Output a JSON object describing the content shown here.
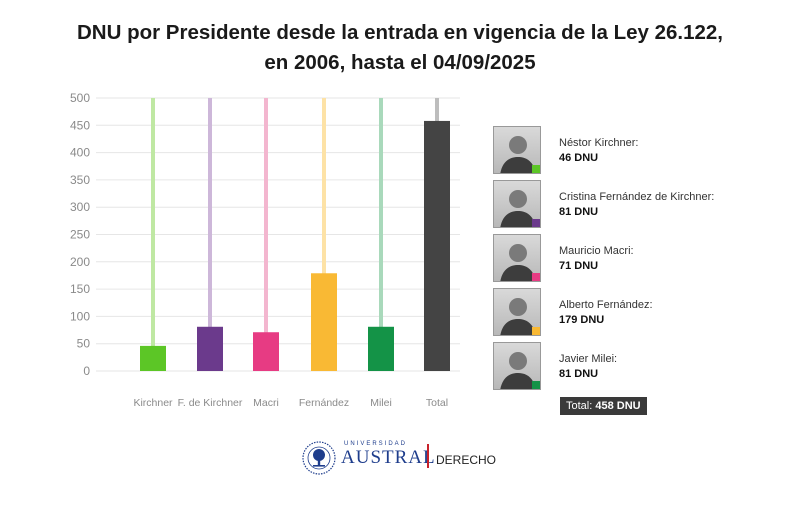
{
  "chart_data": {
    "type": "bar",
    "title_line1": "DNU por Presidente desde la entrada en vigencia de la Ley 26.122,",
    "title_line2": "en 2006, hasta el 04/09/2025",
    "categories": [
      "Kirchner",
      "F. de Kirchner",
      "Macri",
      "Fernández",
      "Milei",
      "Total"
    ],
    "values": [
      46,
      81,
      71,
      179,
      81,
      458
    ],
    "colors": [
      "#5cc626",
      "#6b3a8c",
      "#e73b83",
      "#f9b934",
      "#149347",
      "#444444"
    ],
    "stem_colors": [
      "#bfe8a3",
      "#cdb7d9",
      "#f3b6cf",
      "#fde2a6",
      "#a9d9bb",
      "#bdbdbd"
    ],
    "ylim": [
      0,
      500
    ],
    "yticks": [
      0,
      50,
      100,
      150,
      200,
      250,
      300,
      350,
      400,
      450,
      500
    ],
    "grid": true
  },
  "legend": [
    {
      "name": "Néstor Kirchner:",
      "value": "46 DNU",
      "color": "#5cc626",
      "icon": "portrait-photo"
    },
    {
      "name": "Cristina Fernández de Kirchner:",
      "value": "81 DNU",
      "color": "#6b3a8c",
      "icon": "portrait-photo"
    },
    {
      "name": "Mauricio Macri:",
      "value": "71 DNU",
      "color": "#e73b83",
      "icon": "portrait-photo"
    },
    {
      "name": "Alberto Fernández:",
      "value": "179 DNU",
      "color": "#f9b934",
      "icon": "portrait-photo"
    },
    {
      "name": "Javier Milei:",
      "value": "81 DNU",
      "color": "#149347",
      "icon": "portrait-photo"
    }
  ],
  "total": {
    "label": "Total:",
    "value": "458 DNU"
  },
  "footer": {
    "university_small": "UNIVERSIDAD",
    "university": "AUSTRAL",
    "faculty": "DERECHO",
    "seal_icon": "university-seal-icon"
  }
}
